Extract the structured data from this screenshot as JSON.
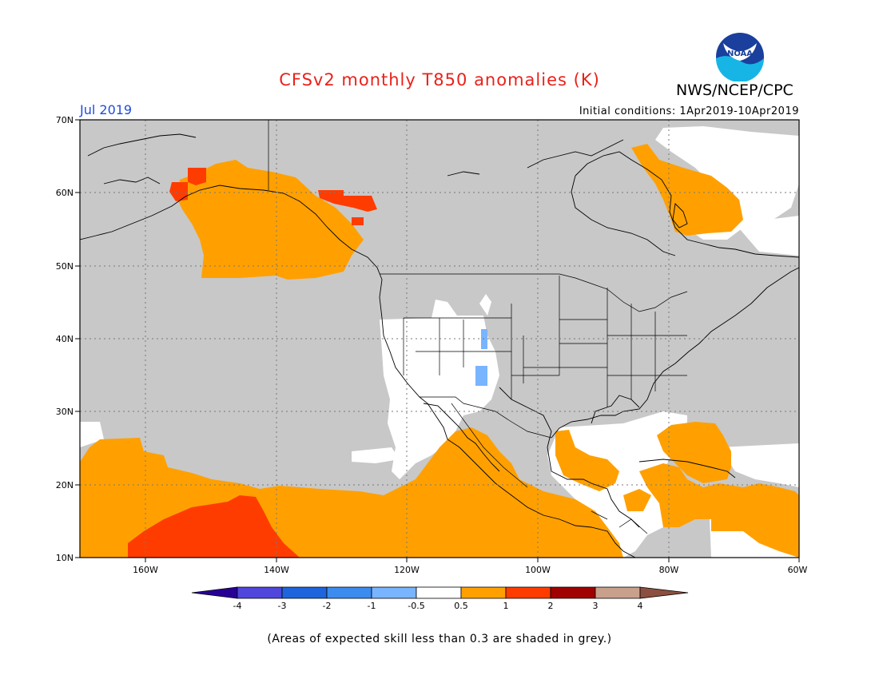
{
  "header": {
    "title": "CFSv2 monthly T850 anomalies (K)",
    "agency": "NWS/NCEP/CPC",
    "month": "Jul 2019",
    "initial_conditions": "Initial conditions: 1Apr2019-10Apr2019",
    "logo_text": "NOAA"
  },
  "map": {
    "lat_labels": [
      "70N",
      "60N",
      "50N",
      "40N",
      "30N",
      "20N",
      "10N"
    ],
    "lon_labels": [
      "160W",
      "140W",
      "120W",
      "100W",
      "80W",
      "60W"
    ],
    "colors": {
      "grey": "#c8c8c8",
      "land_white": "#ffffff",
      "orange": "#ffa000",
      "red_orange": "#ff3c00",
      "light_blue": "#78b4ff"
    }
  },
  "legend": {
    "labels": [
      "-4",
      "-3",
      "-2",
      "-1",
      "-0.5",
      "0.5",
      "1",
      "2",
      "3",
      "4"
    ],
    "colors": [
      "#280096",
      "#5046dc",
      "#1e64dc",
      "#3c8cf0",
      "#78b4ff",
      "#ffffff",
      "#ffa000",
      "#ff3c00",
      "#a00000",
      "#c8a08c",
      "#8c5040"
    ]
  },
  "footer": {
    "note": "(Areas of expected skill less than 0.3 are shaded in grey.)"
  }
}
